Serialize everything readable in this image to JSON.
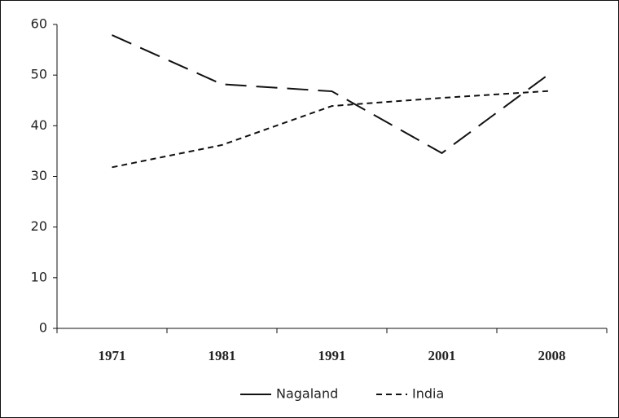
{
  "chart_data": {
    "type": "line",
    "categories": [
      "1971",
      "1981",
      "1991",
      "2001",
      "2008"
    ],
    "series": [
      {
        "name": "Nagaland",
        "color": "#111111",
        "dash": "26 12",
        "values": [
          57.9,
          48.2,
          46.8,
          34.6,
          50.6
        ]
      },
      {
        "name": "India",
        "color": "#111111",
        "dash": "7 5",
        "values": [
          31.8,
          36.2,
          43.9,
          45.5,
          46.9
        ]
      }
    ],
    "ylim": [
      0,
      60
    ],
    "yticks": [
      0,
      10,
      20,
      30,
      40,
      50,
      60
    ],
    "legend": "bottom"
  }
}
